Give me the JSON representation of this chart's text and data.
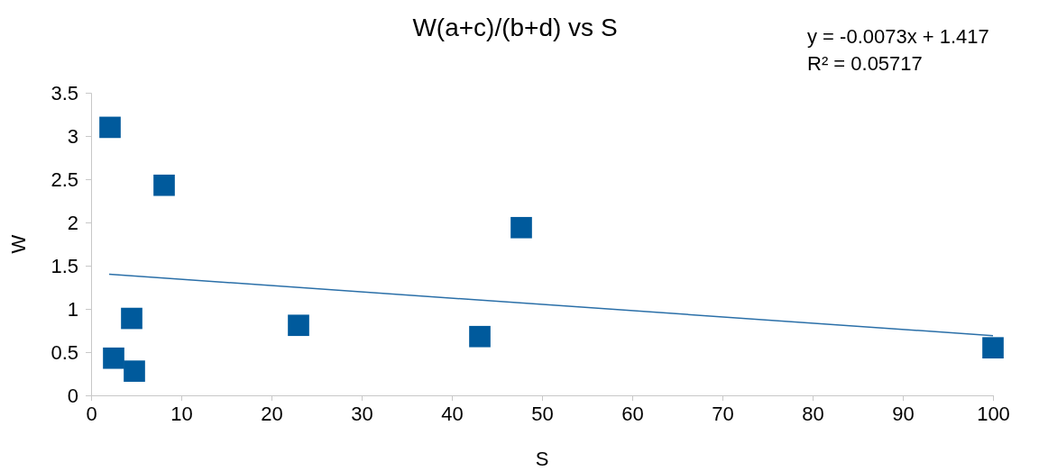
{
  "chart_data": {
    "type": "scatter",
    "title": "W(a+c)/(b+d) vs S",
    "xlabel": "S",
    "ylabel": "W",
    "xlim": [
      0,
      100
    ],
    "xticks": [
      0,
      10,
      20,
      30,
      40,
      50,
      60,
      70,
      80,
      90,
      100
    ],
    "ylim": [
      0,
      3.5
    ],
    "yticks": [
      0,
      0.5,
      1,
      1.5,
      2,
      2.5,
      3,
      3.5
    ],
    "series": [
      {
        "type": "scatter",
        "marker": "square",
        "color": "#005a9c",
        "x": [
          2.1,
          8.1,
          47.7,
          4.5,
          23,
          43.1,
          2.5,
          4.8,
          100
        ],
        "values": [
          3.1,
          2.43,
          1.94,
          0.89,
          0.81,
          0.68,
          0.43,
          0.28,
          0.55
        ]
      },
      {
        "type": "line",
        "marker": "none",
        "color": "#2a6fa8",
        "x": [
          2,
          100
        ],
        "values": [
          1.4,
          0.69
        ]
      }
    ],
    "annotations": [
      "y = -0.0073x + 1.417",
      "R² = 0.05717"
    ]
  }
}
